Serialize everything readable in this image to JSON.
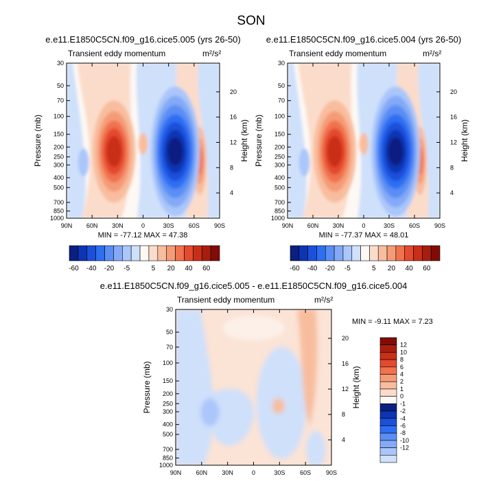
{
  "figure": {
    "season_title": "SON",
    "colors": {
      "blue_scale": [
        "#0a1f80",
        "#0d35b3",
        "#1a50db",
        "#2d6ef2",
        "#5a8ef5",
        "#84aaf7",
        "#aac6fa",
        "#cfe0fb"
      ],
      "neutral": "#fdf8f4",
      "red_scale": [
        "#fbdccb",
        "#f8bd9e",
        "#f59b76",
        "#f0724f",
        "#e44a2d",
        "#c92f18",
        "#a81e0e",
        "#820c05"
      ]
    }
  },
  "chart_data": [
    {
      "type": "heatmap",
      "title": "e.e11.E1850C5CN.f09_g16.cice5.005 (yrs 26-50)",
      "subtitle_left": "Transient eddy momentum",
      "units": "m²/s²",
      "ylabel": "Pressure (mb)",
      "ylabel_right": "Height (km)",
      "x_ticks": [
        "90N",
        "60N",
        "30N",
        "0",
        "30S",
        "60S",
        "90S"
      ],
      "x_range": [
        90,
        -90
      ],
      "y_ticks": [
        "30",
        "50",
        "70",
        "100",
        "150",
        "200",
        "250",
        "300",
        "400",
        "500",
        "700",
        "850",
        "1000"
      ],
      "y_ticks_right": [
        "4",
        "8",
        "12",
        "16",
        "20"
      ],
      "stats": "MIN = -77.12   MAX =  47.38",
      "min": -77.12,
      "max": 47.38,
      "colorbar_labels": [
        "-60",
        "-40",
        "-20",
        "-5",
        "5",
        "20",
        "40",
        "60"
      ]
    },
    {
      "type": "heatmap",
      "title": "e.e11.E1850C5CN.f09_g16.cice5.004 (yrs 26-50)",
      "subtitle_left": "Transient eddy momentum",
      "units": "m²/s²",
      "ylabel": "Pressure (mb)",
      "ylabel_right": "Height (km)",
      "x_ticks": [
        "90N",
        "60N",
        "30N",
        "0",
        "30S",
        "60S",
        "90S"
      ],
      "x_range": [
        90,
        -90
      ],
      "y_ticks": [
        "30",
        "50",
        "70",
        "100",
        "150",
        "200",
        "250",
        "300",
        "400",
        "500",
        "700",
        "850",
        "1000"
      ],
      "y_ticks_right": [
        "4",
        "8",
        "12",
        "16",
        "20"
      ],
      "stats": "MIN = -77.37   MAX =  48.01",
      "min": -77.37,
      "max": 48.01,
      "colorbar_labels": [
        "-60",
        "-40",
        "-20",
        "-5",
        "5",
        "20",
        "40",
        "60"
      ]
    },
    {
      "type": "heatmap",
      "title": "e.e11.E1850C5CN.f09_g16.cice5.005 - e.e11.E1850C5CN.f09_g16.cice5.004",
      "subtitle_left": "Transient eddy momentum",
      "units": "m²/s²",
      "ylabel": "Pressure (mb)",
      "ylabel_right": "Height (km)",
      "x_ticks": [
        "90N",
        "60N",
        "30N",
        "0",
        "30S",
        "60S",
        "90S"
      ],
      "x_range": [
        90,
        -90
      ],
      "y_ticks": [
        "30",
        "50",
        "70",
        "100",
        "150",
        "200",
        "250",
        "300",
        "400",
        "500",
        "700",
        "850",
        "1000"
      ],
      "y_ticks_right": [
        "4",
        "8",
        "12",
        "16",
        "20"
      ],
      "stats": "MIN =  -9.11   MAX =   7.23",
      "min": -9.11,
      "max": 7.23,
      "colorbar_labels": [
        "12",
        "10",
        "8",
        "6",
        "4",
        "2",
        "1",
        "0",
        "-1",
        "-2",
        "-4",
        "-6",
        "-8",
        "-10",
        "-12"
      ]
    }
  ]
}
